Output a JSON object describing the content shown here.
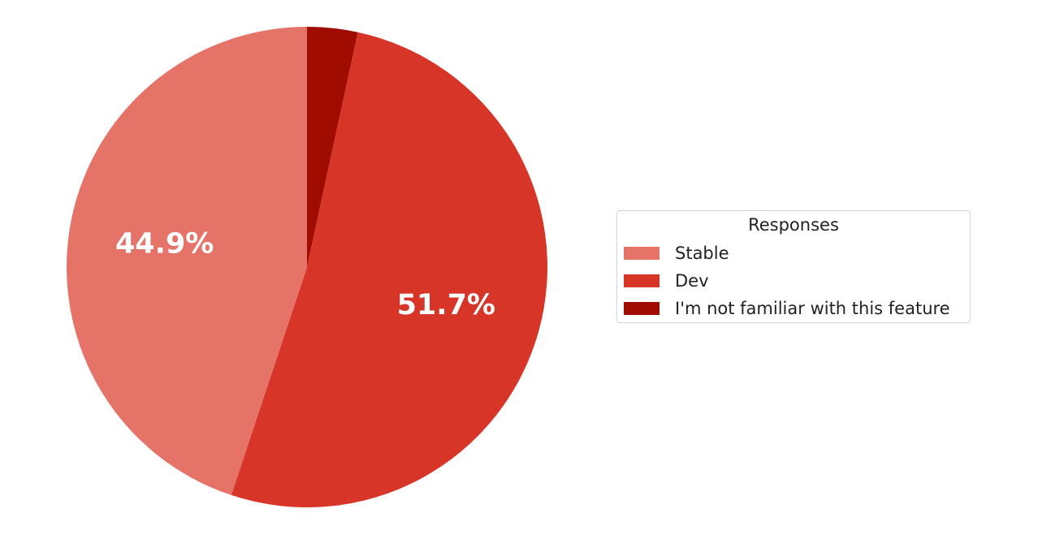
{
  "chart_data": {
    "type": "pie",
    "legend_title": "Responses",
    "legend_position": "center-right",
    "start_angle_deg": 90,
    "direction": "clockwise",
    "slices": [
      {
        "label": "I'm not familiar with this feature",
        "value": 3.4,
        "pct_label": "",
        "color": "#a00d00"
      },
      {
        "label": "Dev",
        "value": 51.7,
        "pct_label": "51.7%",
        "color": "#d73527"
      },
      {
        "label": "Stable",
        "value": 44.9,
        "pct_label": "44.9%",
        "color": "#e57368"
      }
    ],
    "legend_order": [
      "Stable",
      "Dev",
      "I'm not familiar with this feature"
    ]
  }
}
